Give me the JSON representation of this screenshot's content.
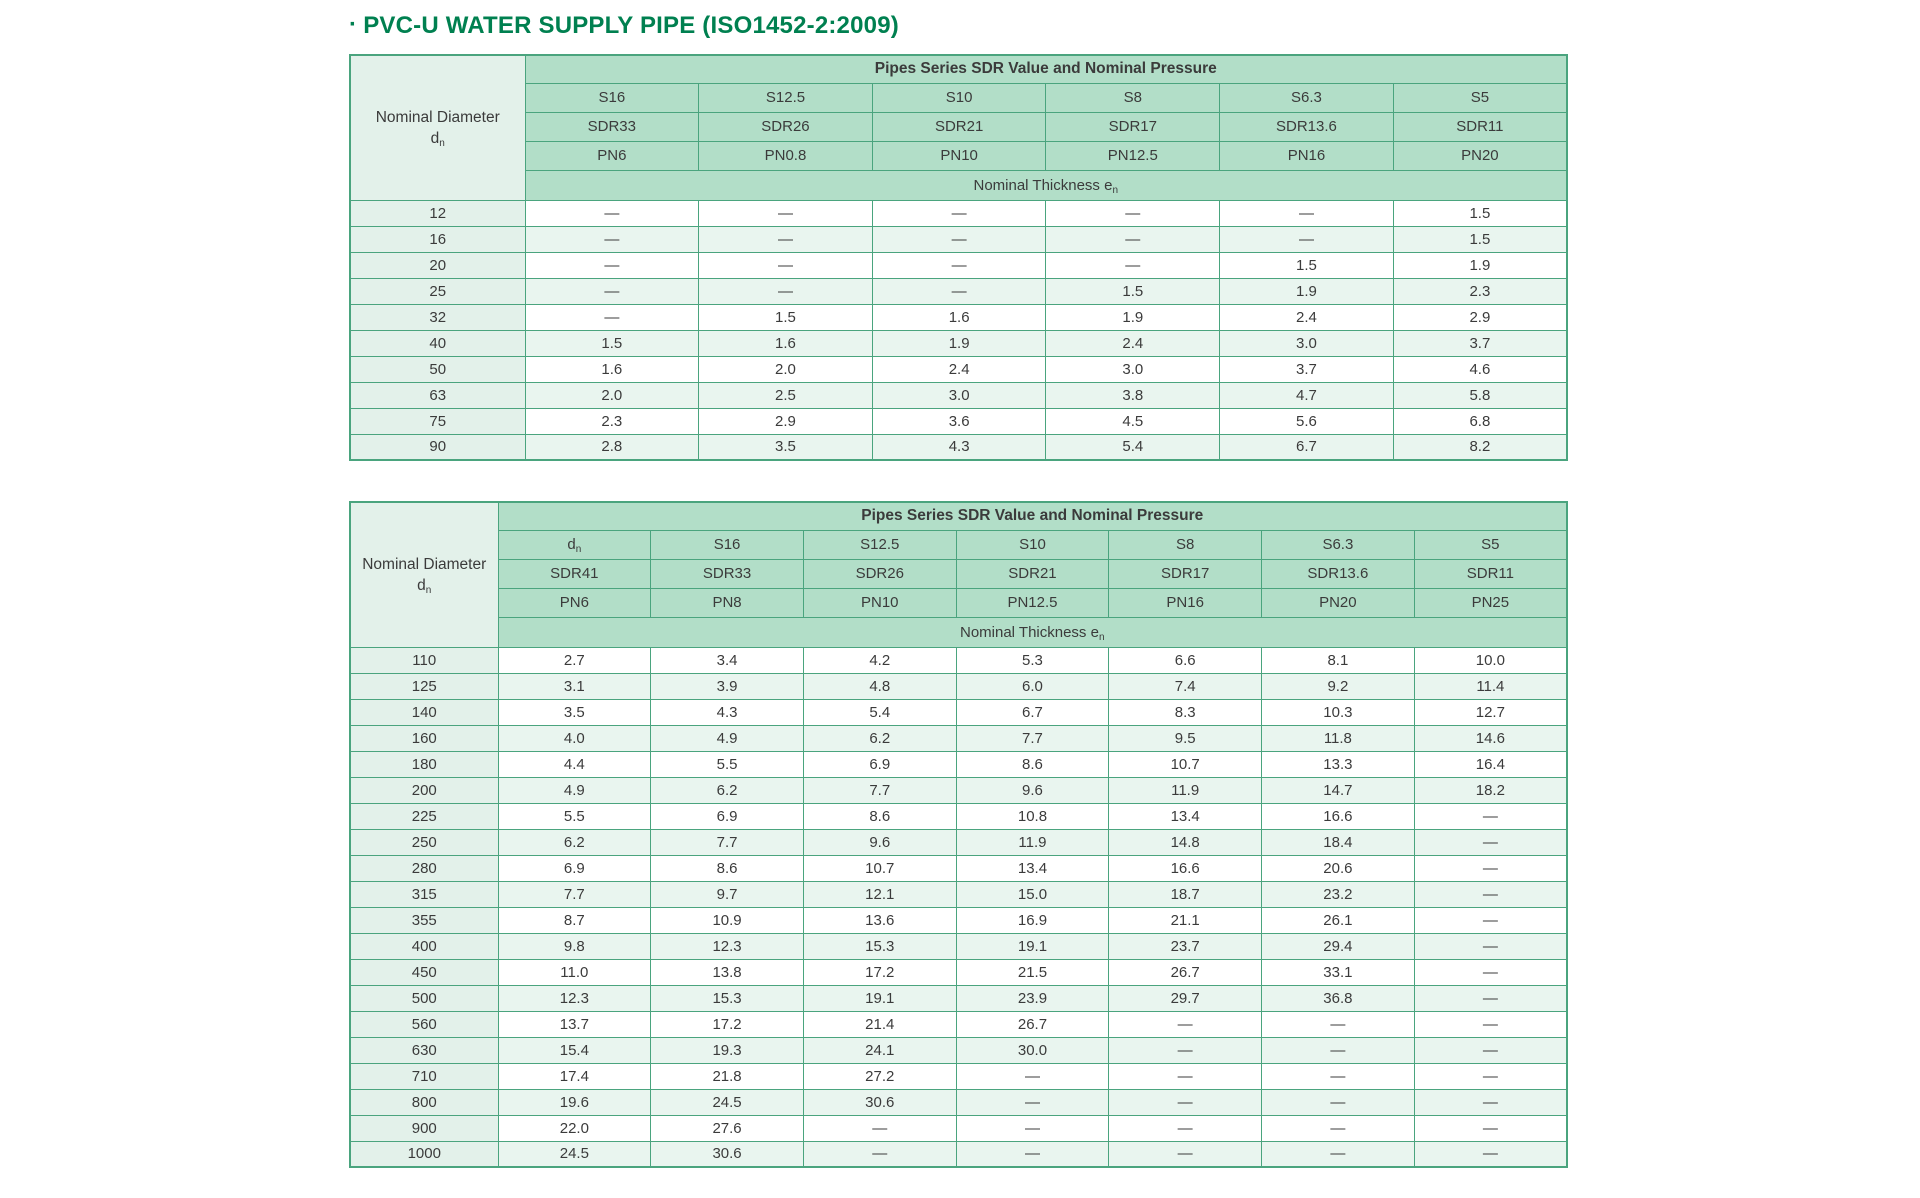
{
  "page": {
    "title_bullet": "·",
    "title": "PVC-U WATER SUPPLY PIPE (ISO1452-2:2009)"
  },
  "colors": {
    "title_green": "#008050",
    "header_fill": "#b2dec8",
    "label_column_fill": "#e3f1ea",
    "alt_row_fill": "#e9f5ef",
    "border_green": "#4aa47e",
    "text": "#3b3b3b"
  },
  "tables": [
    {
      "id": "small-diameters",
      "corner": {
        "line1": "Nominal Diameter",
        "base": "d",
        "sub": "n"
      },
      "banner": "Pipes Series SDR Value and Nominal Pressure",
      "series": [
        {
          "t": "S16"
        },
        {
          "t": "S12.5"
        },
        {
          "t": "S10"
        },
        {
          "t": "S8"
        },
        {
          "t": "S6.3"
        },
        {
          "t": "S5"
        }
      ],
      "sdr": [
        {
          "t": "SDR33"
        },
        {
          "t": "SDR26"
        },
        {
          "t": "SDR21"
        },
        {
          "t": "SDR17"
        },
        {
          "t": "SDR13.6"
        },
        {
          "t": "SDR11"
        }
      ],
      "pn": [
        {
          "t": "PN6"
        },
        {
          "t": "PN0.8"
        },
        {
          "t": "PN10"
        },
        {
          "t": "PN12.5"
        },
        {
          "t": "PN16"
        },
        {
          "t": "PN20"
        }
      ],
      "thickness": {
        "base": "Nominal Thickness e",
        "sub": "n"
      },
      "label_col_width": 175,
      "rows": [
        {
          "label": "12",
          "values": [
            "—",
            "—",
            "—",
            "—",
            "—",
            "1.5"
          ]
        },
        {
          "label": "16",
          "values": [
            "—",
            "—",
            "—",
            "—",
            "—",
            "1.5"
          ]
        },
        {
          "label": "20",
          "values": [
            "—",
            "—",
            "—",
            "—",
            "1.5",
            "1.9"
          ]
        },
        {
          "label": "25",
          "values": [
            "—",
            "—",
            "—",
            "1.5",
            "1.9",
            "2.3"
          ]
        },
        {
          "label": "32",
          "values": [
            "—",
            "1.5",
            "1.6",
            "1.9",
            "2.4",
            "2.9"
          ]
        },
        {
          "label": "40",
          "values": [
            "1.5",
            "1.6",
            "1.9",
            "2.4",
            "3.0",
            "3.7"
          ]
        },
        {
          "label": "50",
          "values": [
            "1.6",
            "2.0",
            "2.4",
            "3.0",
            "3.7",
            "4.6"
          ]
        },
        {
          "label": "63",
          "values": [
            "2.0",
            "2.5",
            "3.0",
            "3.8",
            "4.7",
            "5.8"
          ]
        },
        {
          "label": "75",
          "values": [
            "2.3",
            "2.9",
            "3.6",
            "4.5",
            "5.6",
            "6.8"
          ]
        },
        {
          "label": "90",
          "values": [
            "2.8",
            "3.5",
            "4.3",
            "5.4",
            "6.7",
            "8.2"
          ]
        }
      ]
    },
    {
      "id": "large-diameters",
      "corner": {
        "line1": "Nominal Diameter",
        "base": "d",
        "sub": "n"
      },
      "banner": "Pipes Series SDR Value and Nominal Pressure",
      "series": [
        {
          "t": "d",
          "sub": "n"
        },
        {
          "t": "S16"
        },
        {
          "t": "S12.5"
        },
        {
          "t": "S10"
        },
        {
          "t": "S8"
        },
        {
          "t": "S6.3"
        },
        {
          "t": "S5"
        }
      ],
      "sdr": [
        {
          "t": "SDR41"
        },
        {
          "t": "SDR33"
        },
        {
          "t": "SDR26"
        },
        {
          "t": "SDR21"
        },
        {
          "t": "SDR17"
        },
        {
          "t": "SDR13.6"
        },
        {
          "t": "SDR11"
        }
      ],
      "pn": [
        {
          "t": "PN6"
        },
        {
          "t": "PN8"
        },
        {
          "t": "PN10"
        },
        {
          "t": "PN12.5"
        },
        {
          "t": "PN16"
        },
        {
          "t": "PN20"
        },
        {
          "t": "PN25"
        }
      ],
      "thickness": {
        "base": "Nominal Thickness e",
        "sub": "n"
      },
      "label_col_width": 148,
      "rows": [
        {
          "label": "110",
          "values": [
            "2.7",
            "3.4",
            "4.2",
            "5.3",
            "6.6",
            "8.1",
            "10.0"
          ]
        },
        {
          "label": "125",
          "values": [
            "3.1",
            "3.9",
            "4.8",
            "6.0",
            "7.4",
            "9.2",
            "11.4"
          ]
        },
        {
          "label": "140",
          "values": [
            "3.5",
            "4.3",
            "5.4",
            "6.7",
            "8.3",
            "10.3",
            "12.7"
          ]
        },
        {
          "label": "160",
          "values": [
            "4.0",
            "4.9",
            "6.2",
            "7.7",
            "9.5",
            "11.8",
            "14.6"
          ]
        },
        {
          "label": "180",
          "values": [
            "4.4",
            "5.5",
            "6.9",
            "8.6",
            "10.7",
            "13.3",
            "16.4"
          ]
        },
        {
          "label": "200",
          "values": [
            "4.9",
            "6.2",
            "7.7",
            "9.6",
            "11.9",
            "14.7",
            "18.2"
          ]
        },
        {
          "label": "225",
          "values": [
            "5.5",
            "6.9",
            "8.6",
            "10.8",
            "13.4",
            "16.6",
            "—"
          ]
        },
        {
          "label": "250",
          "values": [
            "6.2",
            "7.7",
            "9.6",
            "11.9",
            "14.8",
            "18.4",
            "—"
          ]
        },
        {
          "label": "280",
          "values": [
            "6.9",
            "8.6",
            "10.7",
            "13.4",
            "16.6",
            "20.6",
            "—"
          ]
        },
        {
          "label": "315",
          "values": [
            "7.7",
            "9.7",
            "12.1",
            "15.0",
            "18.7",
            "23.2",
            "—"
          ]
        },
        {
          "label": "355",
          "values": [
            "8.7",
            "10.9",
            "13.6",
            "16.9",
            "21.1",
            "26.1",
            "—"
          ]
        },
        {
          "label": "400",
          "values": [
            "9.8",
            "12.3",
            "15.3",
            "19.1",
            "23.7",
            "29.4",
            "—"
          ]
        },
        {
          "label": "450",
          "values": [
            "11.0",
            "13.8",
            "17.2",
            "21.5",
            "26.7",
            "33.1",
            "—"
          ]
        },
        {
          "label": "500",
          "values": [
            "12.3",
            "15.3",
            "19.1",
            "23.9",
            "29.7",
            "36.8",
            "—"
          ]
        },
        {
          "label": "560",
          "values": [
            "13.7",
            "17.2",
            "21.4",
            "26.7",
            "—",
            "—",
            "—"
          ]
        },
        {
          "label": "630",
          "values": [
            "15.4",
            "19.3",
            "24.1",
            "30.0",
            "—",
            "—",
            "—"
          ]
        },
        {
          "label": "710",
          "values": [
            "17.4",
            "21.8",
            "27.2",
            "—",
            "—",
            "—",
            "—"
          ]
        },
        {
          "label": "800",
          "values": [
            "19.6",
            "24.5",
            "30.6",
            "—",
            "—",
            "—",
            "—"
          ]
        },
        {
          "label": "900",
          "values": [
            "22.0",
            "27.6",
            "—",
            "—",
            "—",
            "—",
            "—"
          ]
        },
        {
          "label": "1000",
          "values": [
            "24.5",
            "30.6",
            "—",
            "—",
            "—",
            "—",
            "—"
          ]
        }
      ]
    }
  ]
}
